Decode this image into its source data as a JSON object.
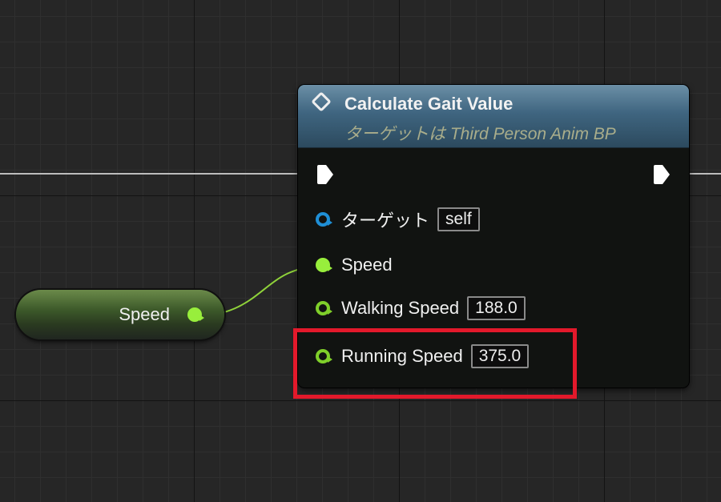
{
  "node": {
    "title": "Calculate Gait Value",
    "subtitle": "ターゲットは Third Person Anim BP",
    "icon": "function-icon",
    "pins": [
      {
        "label": "ターゲット",
        "value": "self",
        "type": "object"
      },
      {
        "label": "Speed",
        "value": null,
        "type": "float",
        "connected": true
      },
      {
        "label": "Walking Speed",
        "value": "188.0",
        "type": "float"
      },
      {
        "label": "Running Speed",
        "value": "375.0",
        "type": "float"
      }
    ]
  },
  "variable_node": {
    "label": "Speed"
  },
  "colors": {
    "float_pin": "#98ee3c",
    "object_pin": "#1f8fd6",
    "highlight": "#e3192b",
    "header": "#3f6580"
  }
}
